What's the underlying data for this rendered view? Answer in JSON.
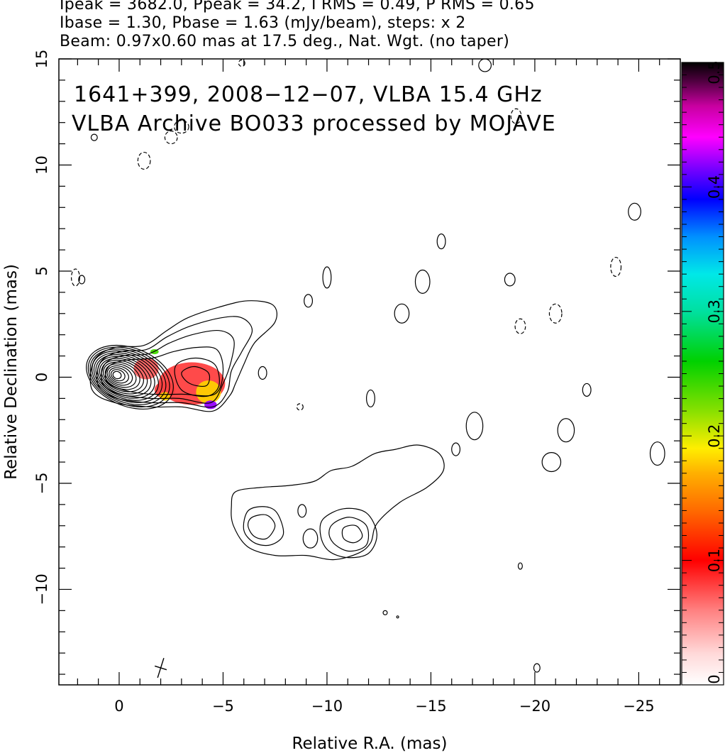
{
  "header": {
    "line1": "Ipeak = 3682.0, Ppeak = 34.2, I RMS = 0.49, P RMS = 0.65",
    "line2": "Ibase = 1.30, Pbase = 1.63 (mJy/beam), steps: x 2",
    "line3": "Beam: 0.97x0.60 mas at 17.5 deg., Nat. Wgt. (no taper)"
  },
  "overlay": {
    "line1": "1641+399, 2008−12−07, VLBA 15.4 GHz",
    "line2": "VLBA Archive BO033 processed by MOJAVE"
  },
  "chart_data": {
    "type": "contour",
    "xlabel": "Relative R.A. (mas)",
    "ylabel": "Relative Declination (mas)",
    "xlim": [
      2.9,
      -27.0
    ],
    "ylim": [
      -14.5,
      15.0
    ],
    "x_ticks": [
      0,
      -5,
      -10,
      -15,
      -20,
      -25
    ],
    "x_tick_labels": [
      "0",
      "−5",
      "−10",
      "−15",
      "−20",
      "−25"
    ],
    "y_ticks": [
      -10,
      -5,
      0,
      5,
      10,
      15
    ],
    "y_tick_labels": [
      "−10",
      "−5",
      "0",
      "5",
      "10",
      "15"
    ],
    "colorbar": {
      "range": [
        0,
        0.5
      ],
      "ticks": [
        0,
        0.1,
        0.2,
        0.3,
        0.4,
        0.5
      ],
      "tick_labels": [
        "0",
        "0.1",
        "0.2",
        "0.3",
        "0.4",
        "0.5"
      ]
    },
    "core": {
      "x": 0.1,
      "y": 0.1
    },
    "core_contour_count": 15,
    "jet_contours": [
      {
        "name": "inner-jet",
        "points": [
          [
            1.2,
            0.8
          ],
          [
            0.2,
            1.4
          ],
          [
            -1.2,
            1.5
          ],
          [
            -2.3,
            2.2
          ],
          [
            -3.3,
            2.8
          ],
          [
            -4.8,
            3.3
          ],
          [
            -6.2,
            3.6
          ],
          [
            -7.4,
            3.4
          ],
          [
            -7.5,
            2.6
          ],
          [
            -6.5,
            1.6
          ],
          [
            -6.0,
            0.6
          ],
          [
            -5.6,
            -0.3
          ],
          [
            -5.3,
            -0.9
          ],
          [
            -4.5,
            -1.6
          ],
          [
            -3.0,
            -1.4
          ],
          [
            -1.5,
            -1.4
          ],
          [
            0.2,
            -1.2
          ],
          [
            1.3,
            -0.6
          ]
        ]
      },
      {
        "name": "inner-jet",
        "points": [
          [
            0.9,
            0.7
          ],
          [
            0.0,
            1.2
          ],
          [
            -1.3,
            1.3
          ],
          [
            -2.3,
            1.9
          ],
          [
            -3.4,
            2.4
          ],
          [
            -4.9,
            2.8
          ],
          [
            -5.9,
            2.8
          ],
          [
            -6.4,
            2.2
          ],
          [
            -5.9,
            1.2
          ],
          [
            -5.4,
            0.3
          ],
          [
            -5.2,
            -0.7
          ],
          [
            -4.5,
            -1.4
          ],
          [
            -3.0,
            -1.2
          ],
          [
            -1.5,
            -1.2
          ],
          [
            0.1,
            -1.0
          ],
          [
            1.0,
            -0.4
          ]
        ]
      },
      {
        "name": "inner-jet",
        "points": [
          [
            0.7,
            0.6
          ],
          [
            -0.1,
            1.0
          ],
          [
            -1.4,
            1.1
          ],
          [
            -2.4,
            1.6
          ],
          [
            -3.5,
            2.0
          ],
          [
            -4.8,
            2.2
          ],
          [
            -5.5,
            1.8
          ],
          [
            -5.4,
            0.8
          ],
          [
            -5.0,
            -0.3
          ],
          [
            -4.4,
            -1.2
          ],
          [
            -2.9,
            -1.0
          ],
          [
            -1.5,
            -1.0
          ],
          [
            0.0,
            -0.8
          ],
          [
            0.8,
            -0.3
          ]
        ]
      },
      {
        "name": "inner-jet",
        "points": [
          [
            0.5,
            0.5
          ],
          [
            -0.3,
            0.8
          ],
          [
            -1.6,
            0.9
          ],
          [
            -2.6,
            1.2
          ],
          [
            -3.7,
            1.4
          ],
          [
            -4.7,
            1.3
          ],
          [
            -5.0,
            0.3
          ],
          [
            -4.6,
            -0.8
          ],
          [
            -3.0,
            -0.8
          ],
          [
            -1.5,
            -0.8
          ],
          [
            -0.2,
            -0.6
          ],
          [
            0.6,
            -0.2
          ]
        ]
      },
      {
        "name": "inner-jet",
        "points": [
          [
            -2.7,
            0.5
          ],
          [
            -3.6,
            0.9
          ],
          [
            -4.6,
            0.6
          ],
          [
            -4.8,
            -0.4
          ],
          [
            -4.2,
            -0.9
          ],
          [
            -3.0,
            -0.6
          ]
        ]
      },
      {
        "name": "inner-jet",
        "points": [
          [
            -3.0,
            0.2
          ],
          [
            -3.6,
            0.5
          ],
          [
            -4.3,
            0.2
          ],
          [
            -4.2,
            -0.4
          ],
          [
            -3.4,
            -0.3
          ]
        ]
      },
      {
        "name": "lower-jet",
        "points": [
          [
            -5.6,
            -5.4
          ],
          [
            -6.8,
            -5.2
          ],
          [
            -8.2,
            -5.1
          ],
          [
            -9.4,
            -4.9
          ],
          [
            -10.2,
            -4.4
          ],
          [
            -11.2,
            -4.2
          ],
          [
            -12.3,
            -3.6
          ],
          [
            -13.3,
            -3.4
          ],
          [
            -14.4,
            -3.2
          ],
          [
            -15.4,
            -3.6
          ],
          [
            -15.6,
            -4.4
          ],
          [
            -14.8,
            -5.2
          ],
          [
            -13.5,
            -5.9
          ],
          [
            -12.4,
            -6.9
          ],
          [
            -12.1,
            -7.8
          ],
          [
            -11.5,
            -8.3
          ],
          [
            -10.3,
            -8.6
          ],
          [
            -9.0,
            -8.4
          ],
          [
            -7.5,
            -8.4
          ],
          [
            -6.2,
            -8.0
          ],
          [
            -5.5,
            -7.0
          ],
          [
            -5.4,
            -6.1
          ]
        ]
      },
      {
        "name": "lower-jet",
        "points": [
          [
            -6.2,
            -6.3
          ],
          [
            -7.0,
            -6.1
          ],
          [
            -7.6,
            -6.4
          ],
          [
            -7.9,
            -7.4
          ],
          [
            -7.3,
            -7.9
          ],
          [
            -6.5,
            -7.8
          ],
          [
            -6.0,
            -7.2
          ]
        ]
      },
      {
        "name": "lower-jet",
        "points": [
          [
            -6.4,
            -6.6
          ],
          [
            -7.1,
            -6.5
          ],
          [
            -7.5,
            -7.0
          ],
          [
            -7.1,
            -7.6
          ],
          [
            -6.5,
            -7.5
          ],
          [
            -6.2,
            -7.0
          ]
        ]
      },
      {
        "name": "lower-jet",
        "points": [
          [
            -9.8,
            -6.7
          ],
          [
            -10.8,
            -6.2
          ],
          [
            -11.9,
            -6.4
          ],
          [
            -12.4,
            -7.4
          ],
          [
            -12.0,
            -8.3
          ],
          [
            -11.0,
            -8.5
          ],
          [
            -10.1,
            -8.2
          ],
          [
            -9.7,
            -7.5
          ]
        ]
      },
      {
        "name": "lower-jet",
        "points": [
          [
            -10.3,
            -6.9
          ],
          [
            -11.1,
            -6.6
          ],
          [
            -11.9,
            -7.0
          ],
          [
            -11.9,
            -7.9
          ],
          [
            -11.1,
            -8.2
          ],
          [
            -10.4,
            -7.9
          ],
          [
            -10.1,
            -7.4
          ]
        ]
      },
      {
        "name": "lower-jet",
        "points": [
          [
            -10.8,
            -7.1
          ],
          [
            -11.4,
            -7.0
          ],
          [
            -11.7,
            -7.5
          ],
          [
            -11.3,
            -7.8
          ],
          [
            -10.8,
            -7.6
          ]
        ]
      }
    ],
    "noise_islands": [
      {
        "x": 2.1,
        "y": 4.7,
        "rx": 0.2,
        "ry": 0.4,
        "dashed": true
      },
      {
        "x": 1.8,
        "y": 4.6,
        "rx": 0.15,
        "ry": 0.2,
        "dashed": false
      },
      {
        "x": 1.2,
        "y": 11.3,
        "rx": 0.15,
        "ry": 0.15,
        "dashed": false
      },
      {
        "x": -1.2,
        "y": 10.2,
        "rx": 0.3,
        "ry": 0.4,
        "dashed": true
      },
      {
        "x": -2.5,
        "y": 11.3,
        "rx": 0.3,
        "ry": 0.3,
        "dashed": true
      },
      {
        "x": -3.0,
        "y": 11.8,
        "rx": 0.35,
        "ry": 0.3,
        "dashed": true
      },
      {
        "x": -5.9,
        "y": 14.8,
        "rx": 0.15,
        "ry": 0.15,
        "dashed": true
      },
      {
        "x": -10.0,
        "y": 4.7,
        "rx": 0.2,
        "ry": 0.5,
        "dashed": false
      },
      {
        "x": -9.1,
        "y": 3.6,
        "rx": 0.2,
        "ry": 0.3,
        "dashed": false
      },
      {
        "x": -13.6,
        "y": 3.0,
        "rx": 0.35,
        "ry": 0.45,
        "dashed": false
      },
      {
        "x": -14.6,
        "y": 4.5,
        "rx": 0.35,
        "ry": 0.55,
        "dashed": false
      },
      {
        "x": -15.5,
        "y": 6.4,
        "rx": 0.2,
        "ry": 0.35,
        "dashed": false
      },
      {
        "x": -18.8,
        "y": 4.6,
        "rx": 0.25,
        "ry": 0.3,
        "dashed": false
      },
      {
        "x": -19.3,
        "y": 2.4,
        "rx": 0.25,
        "ry": 0.35,
        "dashed": true
      },
      {
        "x": -21.0,
        "y": 3.0,
        "rx": 0.3,
        "ry": 0.45,
        "dashed": true
      },
      {
        "x": -24.8,
        "y": 7.8,
        "rx": 0.3,
        "ry": 0.4,
        "dashed": false
      },
      {
        "x": -23.9,
        "y": 5.2,
        "rx": 0.25,
        "ry": 0.45,
        "dashed": true
      },
      {
        "x": -19.1,
        "y": 12.3,
        "rx": 0.25,
        "ry": 0.35,
        "dashed": true
      },
      {
        "x": -17.6,
        "y": 14.7,
        "rx": 0.3,
        "ry": 0.3,
        "dashed": false
      },
      {
        "x": -12.1,
        "y": -1.0,
        "rx": 0.2,
        "ry": 0.4,
        "dashed": false
      },
      {
        "x": -6.9,
        "y": 0.2,
        "rx": 0.2,
        "ry": 0.3,
        "dashed": false
      },
      {
        "x": -8.7,
        "y": -1.4,
        "rx": 0.15,
        "ry": 0.15,
        "dashed": true
      },
      {
        "x": -16.2,
        "y": -3.4,
        "rx": 0.2,
        "ry": 0.3,
        "dashed": false
      },
      {
        "x": -17.1,
        "y": -2.3,
        "rx": 0.4,
        "ry": 0.65,
        "dashed": false
      },
      {
        "x": -21.5,
        "y": -2.5,
        "rx": 0.4,
        "ry": 0.55,
        "dashed": false
      },
      {
        "x": -20.8,
        "y": -4.0,
        "rx": 0.45,
        "ry": 0.45,
        "dashed": false
      },
      {
        "x": -22.5,
        "y": -0.6,
        "rx": 0.2,
        "ry": 0.3,
        "dashed": false
      },
      {
        "x": -25.9,
        "y": -3.6,
        "rx": 0.35,
        "ry": 0.55,
        "dashed": false
      },
      {
        "x": -19.3,
        "y": -8.9,
        "rx": 0.1,
        "ry": 0.15,
        "dashed": false
      },
      {
        "x": -12.8,
        "y": -11.1,
        "rx": 0.1,
        "ry": 0.1,
        "dashed": false
      },
      {
        "x": -13.4,
        "y": -11.3,
        "rx": 0.05,
        "ry": 0.05,
        "dashed": false
      },
      {
        "x": -20.1,
        "y": -13.7,
        "rx": 0.15,
        "ry": 0.2,
        "dashed": false
      },
      {
        "x": -8.8,
        "y": -6.3,
        "rx": 0.2,
        "ry": 0.3,
        "dashed": false
      },
      {
        "x": -9.2,
        "y": -7.6,
        "rx": 0.35,
        "ry": 0.45,
        "dashed": false
      }
    ],
    "polarization_blobs": [
      {
        "x": -3.5,
        "y": -0.3,
        "rx": 1.6,
        "ry": 1.0,
        "value": 0.08
      },
      {
        "x": -4.3,
        "y": -0.7,
        "rx": 0.6,
        "ry": 0.55,
        "value": 0.18
      },
      {
        "x": -4.4,
        "y": -1.3,
        "rx": 0.3,
        "ry": 0.2,
        "value": 0.42
      },
      {
        "x": -1.3,
        "y": 0.4,
        "rx": 0.6,
        "ry": 0.5,
        "value": 0.07
      },
      {
        "x": -2.2,
        "y": -0.6,
        "rx": 0.5,
        "ry": 0.4,
        "value": 0.08
      },
      {
        "x": -2.2,
        "y": -0.9,
        "rx": 0.25,
        "ry": 0.2,
        "value": 0.18
      },
      {
        "x": -1.7,
        "y": 1.2,
        "rx": 0.2,
        "ry": 0.12,
        "value": 0.24
      }
    ],
    "beam": {
      "x": -2.0,
      "y": -13.7,
      "major": 0.97,
      "minor": 0.6,
      "pa_deg": 17.5
    }
  }
}
